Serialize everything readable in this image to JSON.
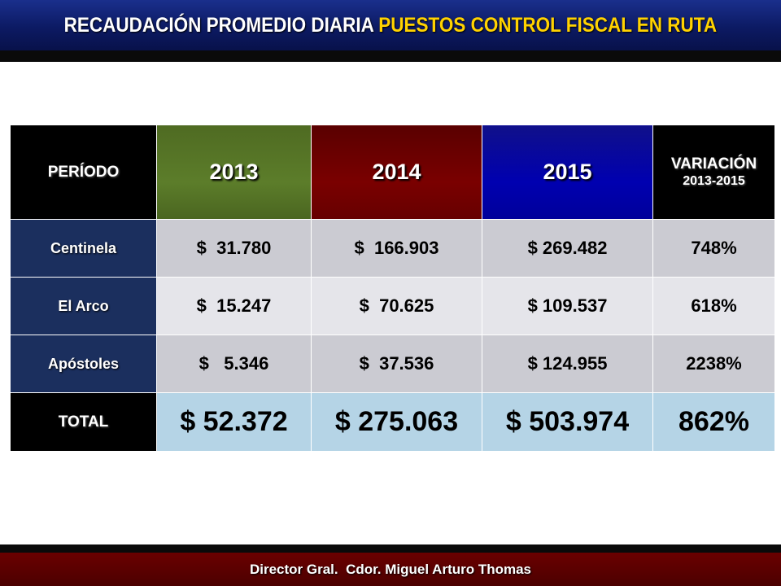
{
  "title": {
    "part1": "RECAUDACIÓN PROMEDIO DIARIA ",
    "part2": "PUESTOS CONTROL FISCAL EN RUTA"
  },
  "colors": {
    "title_bar": "#0c1a63",
    "title_highlight": "#ffd200",
    "year_2013": "#5c7d2a",
    "year_2014": "#7a0000",
    "year_2015": "#0000b0",
    "row_label": "#1b2f5e",
    "total_cells": "#b5d4e6",
    "footer": "#5a0000"
  },
  "table": {
    "headers": {
      "periodo": "PERÍODO",
      "y2013": "2013",
      "y2014": "2014",
      "y2015": "2015",
      "variacion_line1": "VARIACIÓN",
      "variacion_line2": "2013-2015"
    },
    "rows": [
      {
        "label": "Centinela",
        "v2013": "$  31.780",
        "v2014": "$  166.903",
        "v2015": "$ 269.482",
        "variacion": "748%"
      },
      {
        "label": "El Arco",
        "v2013": "$  15.247",
        "v2014": "$  70.625",
        "v2015": "$ 109.537",
        "variacion": "618%"
      },
      {
        "label": "Apóstoles",
        "v2013": "$   5.346",
        "v2014": "$  37.536",
        "v2015": "$ 124.955",
        "variacion": "2238%"
      }
    ],
    "total": {
      "label": "TOTAL",
      "v2013": "$ 52.372",
      "v2014": "$ 275.063",
      "v2015": "$ 503.974",
      "variacion": "862%"
    }
  },
  "footer": {
    "text": "Director Gral.  Cdor. Miguel Arturo Thomas"
  }
}
